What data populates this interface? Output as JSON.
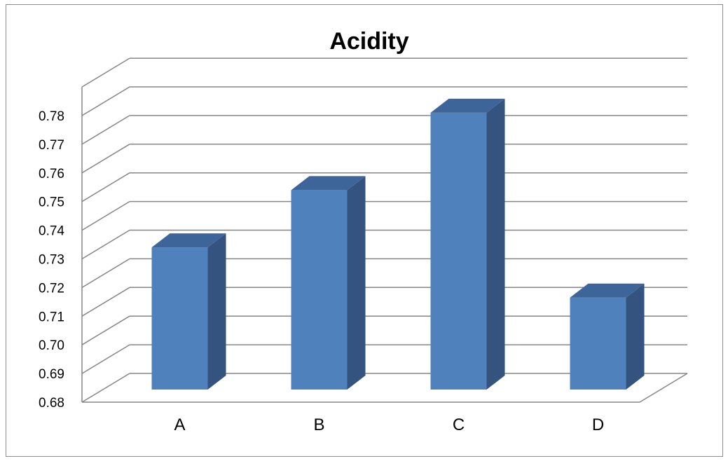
{
  "chart_data": {
    "type": "bar",
    "title": "Acidity",
    "xlabel": "",
    "ylabel": "",
    "categories": [
      "A",
      "B",
      "C",
      "D"
    ],
    "values": [
      0.734,
      0.754,
      0.781,
      0.7165
    ],
    "ylim": [
      0.68,
      0.78
    ],
    "yticks": [
      "0.68",
      "0.69",
      "0.70",
      "0.71",
      "0.72",
      "0.73",
      "0.74",
      "0.75",
      "0.76",
      "0.77",
      "0.78"
    ],
    "grid": true,
    "legend": "none",
    "style": "3d-column",
    "colors": {
      "front": "#4f81bd",
      "side": "#34537f",
      "top": "#3e6599",
      "grid": "#868686"
    }
  }
}
